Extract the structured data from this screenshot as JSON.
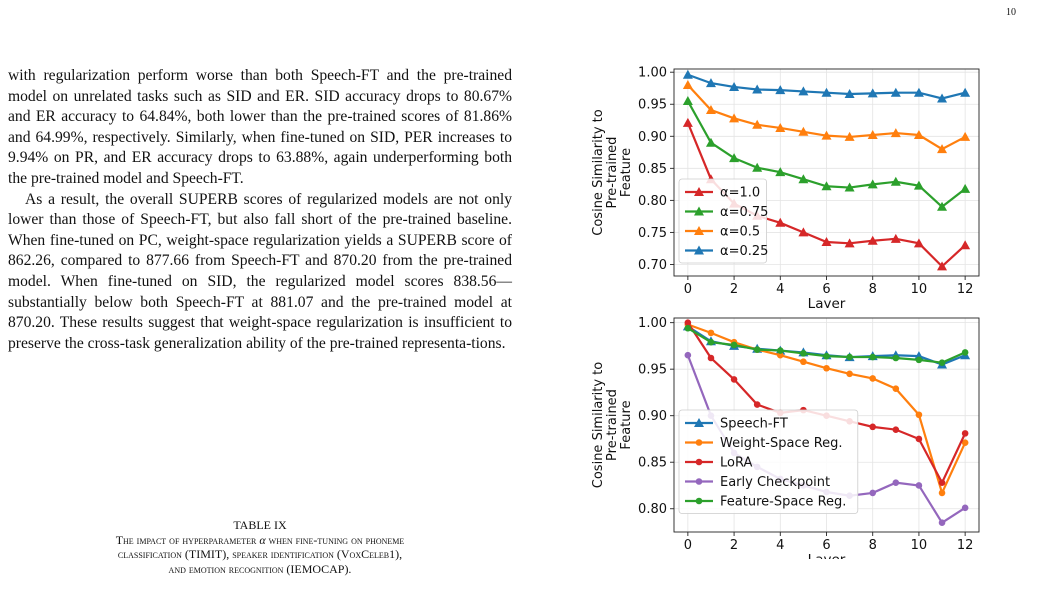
{
  "page": {
    "number": "10"
  },
  "body": {
    "paragraph1": "with regularization perform worse than both Speech-FT and the pre-trained model on unrelated tasks such as SID and ER. SID accuracy drops to 80.67% and ER accuracy to 64.84%, both lower than the pre-trained scores of 81.86% and 64.99%, respectively. Similarly, when fine-tuned on SID, PER increases to 9.94% on PR, and ER accuracy drops to 63.88%, again underperforming both the pre-trained model and Speech-FT.",
    "paragraph2": "As a result, the overall SUPERB scores of regularized models are not only lower than those of Speech-FT, but also fall short of the pre-trained baseline. When fine-tuned on PC, weight-space regularization yields a SUPERB score of 862.26, compared to 877.66 from Speech-FT and 870.20 from the pre-trained model. When fine-tuned on SID, the regularized model scores 838.56—substantially below both Speech-FT at 881.07 and the pre-trained model at 870.20. These results suggest that weight-space regularization is insufficient to preserve the cross-task generalization ability of the pre-trained representa-tions."
  },
  "table_caption": {
    "label": "TABLE IX",
    "line1_prefix": "The impact of hyperparameter ",
    "alpha_symbol": "α",
    "line1_suffix": " when fine-tuning on phoneme",
    "line2_a": "classification (",
    "line2_b": "TIMIT",
    "line2_c": "), speaker identification (",
    "line2_d": "VoxCeleb1",
    "line2_e": "),",
    "line3_a": "and emotion recognition (",
    "line3_b": "IEMOCAP",
    "line3_c": ")."
  },
  "chart_data": [
    {
      "type": "line",
      "xlabel": "Layer",
      "ylabel": "Cosine Similarity to Pre-trained Feature",
      "ylabel_lines": [
        "Cosine Similarity to",
        "Pre-trained",
        "Feature"
      ],
      "xlim": [
        -0.6,
        12.6
      ],
      "ylim": [
        0.682,
        1.005
      ],
      "x_ticks": [
        0,
        2,
        4,
        6,
        8,
        10,
        12
      ],
      "y_ticks": [
        0.7,
        0.75,
        0.8,
        0.85,
        0.9,
        0.95,
        1.0
      ],
      "y_tick_labels": [
        "0.70",
        "0.75",
        "0.80",
        "0.85",
        "0.90",
        "0.95",
        "1.00"
      ],
      "grid": true,
      "legend_position": "center-left",
      "x": [
        0,
        1,
        2,
        3,
        4,
        5,
        6,
        7,
        8,
        9,
        10,
        11,
        12
      ],
      "series": [
        {
          "name": "α=1.0",
          "color": "#d62728",
          "marker": "triangle",
          "values": [
            0.921,
            0.833,
            0.795,
            0.776,
            0.765,
            0.75,
            0.735,
            0.733,
            0.737,
            0.74,
            0.733,
            0.697,
            0.73
          ]
        },
        {
          "name": "α=0.75",
          "color": "#2ca02c",
          "marker": "triangle",
          "values": [
            0.955,
            0.89,
            0.866,
            0.851,
            0.844,
            0.833,
            0.822,
            0.82,
            0.825,
            0.829,
            0.823,
            0.79,
            0.818
          ]
        },
        {
          "name": "α=0.5",
          "color": "#ff7f0e",
          "marker": "triangle",
          "values": [
            0.98,
            0.941,
            0.928,
            0.918,
            0.913,
            0.907,
            0.901,
            0.899,
            0.902,
            0.905,
            0.902,
            0.88,
            0.899
          ]
        },
        {
          "name": "α=0.25",
          "color": "#1f77b4",
          "marker": "triangle",
          "values": [
            0.996,
            0.983,
            0.977,
            0.973,
            0.972,
            0.97,
            0.968,
            0.966,
            0.967,
            0.968,
            0.968,
            0.959,
            0.968
          ]
        }
      ]
    },
    {
      "type": "line",
      "xlabel": "Layer",
      "ylabel": "Cosine Similarity to Pre-trained Feature",
      "ylabel_lines": [
        "Cosine Similarity to",
        "Pre-trained",
        "Feature"
      ],
      "xlim": [
        -0.6,
        12.6
      ],
      "ylim": [
        0.775,
        1.005
      ],
      "x_ticks": [
        0,
        2,
        4,
        6,
        8,
        10,
        12
      ],
      "y_ticks": [
        0.8,
        0.85,
        0.9,
        0.95,
        1.0
      ],
      "y_tick_labels": [
        "0.80",
        "0.85",
        "0.90",
        "0.95",
        "1.00"
      ],
      "grid": true,
      "legend_position": "lower-left",
      "x": [
        0,
        1,
        2,
        3,
        4,
        5,
        6,
        7,
        8,
        9,
        10,
        11,
        12
      ],
      "series": [
        {
          "name": "Speech-FT",
          "color": "#1f77b4",
          "marker": "triangle",
          "values": [
            0.996,
            0.98,
            0.975,
            0.972,
            0.97,
            0.968,
            0.965,
            0.963,
            0.964,
            0.965,
            0.964,
            0.955,
            0.965
          ]
        },
        {
          "name": "Weight-Space Reg.",
          "color": "#ff7f0e",
          "marker": "circle",
          "values": [
            0.998,
            0.989,
            0.979,
            0.971,
            0.965,
            0.958,
            0.951,
            0.945,
            0.94,
            0.929,
            0.901,
            0.817,
            0.871
          ]
        },
        {
          "name": "LoRA",
          "color": "#d62728",
          "marker": "circle",
          "values": [
            1.0,
            0.962,
            0.939,
            0.912,
            0.903,
            0.906,
            0.9,
            0.894,
            0.888,
            0.885,
            0.875,
            0.828,
            0.881
          ]
        },
        {
          "name": "Early Checkpoint",
          "color": "#9467bd",
          "marker": "circle",
          "values": [
            0.965,
            0.9,
            0.86,
            0.845,
            0.832,
            0.825,
            0.818,
            0.814,
            0.817,
            0.828,
            0.825,
            0.785,
            0.801
          ]
        },
        {
          "name": "Feature-Space Reg.",
          "color": "#2ca02c",
          "marker": "circle",
          "values": [
            0.994,
            0.979,
            0.976,
            0.971,
            0.97,
            0.967,
            0.964,
            0.963,
            0.963,
            0.962,
            0.96,
            0.957,
            0.968
          ]
        }
      ]
    }
  ]
}
